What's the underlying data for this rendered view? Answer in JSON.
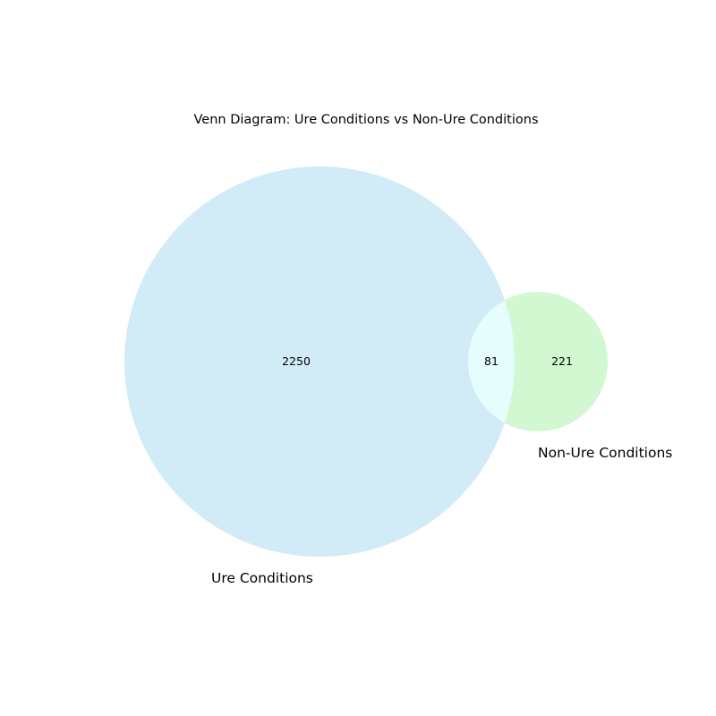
{
  "title": "Venn Diagram: Ure Conditions vs Non-Ure Conditions",
  "sets": [
    {
      "name": "Ure Conditions",
      "only_count": "2250",
      "color": "#d1ebf7"
    },
    {
      "name": "Non-Ure Conditions",
      "only_count": "221",
      "color": "#d2f8d2"
    }
  ],
  "intersection": {
    "count": "81",
    "color": "#e6fdfd"
  },
  "chart_data": {
    "type": "venn",
    "title": "Venn Diagram: Ure Conditions vs Non-Ure Conditions",
    "sets": [
      "Ure Conditions",
      "Non-Ure Conditions"
    ],
    "regions": [
      {
        "sets": [
          "Ure Conditions"
        ],
        "value": 2250
      },
      {
        "sets": [
          "Non-Ure Conditions"
        ],
        "value": 221
      },
      {
        "sets": [
          "Ure Conditions",
          "Non-Ure Conditions"
        ],
        "value": 81
      }
    ]
  }
}
